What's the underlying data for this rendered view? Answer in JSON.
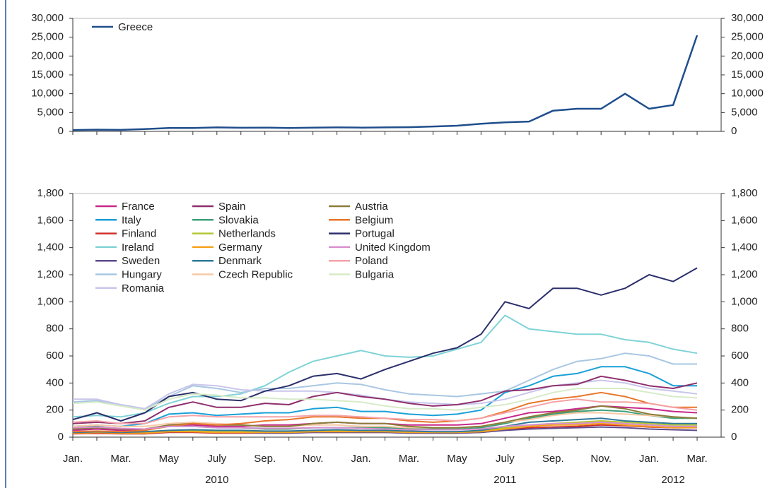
{
  "chart_data": [
    {
      "type": "line",
      "x": [
        "2010-01",
        "2010-02",
        "2010-03",
        "2010-04",
        "2010-05",
        "2010-06",
        "2010-07",
        "2010-08",
        "2010-09",
        "2010-10",
        "2010-11",
        "2010-12",
        "2011-01",
        "2011-02",
        "2011-03",
        "2011-04",
        "2011-05",
        "2011-06",
        "2011-07",
        "2011-08",
        "2011-09",
        "2011-10",
        "2011-11",
        "2011-12",
        "2012-01",
        "2012-02",
        "2012-03"
      ],
      "xlim": [
        "2010-01",
        "2012-04"
      ],
      "ylim": [
        0,
        30000
      ],
      "yticks": [
        0,
        {
          "value": 5000,
          "label": "5,000"
        },
        {
          "value": 10000,
          "label": "10,000"
        },
        {
          "value": 15000,
          "label": "15,000"
        },
        {
          "value": 20000,
          "label": "20,000"
        },
        {
          "value": 25000,
          "label": "25,000"
        },
        {
          "value": 30000,
          "label": "30,000"
        }
      ],
      "series": [
        {
          "name": "Greece",
          "color": "#1f4e8c",
          "values": [
            350,
            450,
            400,
            600,
            900,
            900,
            1050,
            950,
            1000,
            900,
            1000,
            1050,
            1000,
            1050,
            1100,
            1300,
            1500,
            2000,
            2400,
            2600,
            5500,
            6000,
            6000,
            10000,
            6000,
            7000,
            25500
          ]
        }
      ]
    },
    {
      "type": "line",
      "x": [
        "2010-01",
        "2010-02",
        "2010-03",
        "2010-04",
        "2010-05",
        "2010-06",
        "2010-07",
        "2010-08",
        "2010-09",
        "2010-10",
        "2010-11",
        "2010-12",
        "2011-01",
        "2011-02",
        "2011-03",
        "2011-04",
        "2011-05",
        "2011-06",
        "2011-07",
        "2011-08",
        "2011-09",
        "2011-10",
        "2011-11",
        "2011-12",
        "2012-01",
        "2012-02",
        "2012-03"
      ],
      "xlim": [
        "2010-01",
        "2012-04"
      ],
      "xticks": [
        {
          "value": "2010-01",
          "label": "Jan."
        },
        {
          "value": "2010-03",
          "label": "Mar."
        },
        {
          "value": "2010-05",
          "label": "May"
        },
        {
          "value": "2010-07",
          "label": "July"
        },
        {
          "value": "2010-09",
          "label": "Sep."
        },
        {
          "value": "2010-11",
          "label": "Nov."
        },
        {
          "value": "2011-01",
          "label": "Jan."
        },
        {
          "value": "2011-03",
          "label": "Mar."
        },
        {
          "value": "2011-05",
          "label": "May"
        },
        {
          "value": "2011-07",
          "label": "July"
        },
        {
          "value": "2011-09",
          "label": "Sep."
        },
        {
          "value": "2011-11",
          "label": "Nov."
        },
        {
          "value": "2012-01",
          "label": "Jan."
        },
        {
          "value": "2012-03",
          "label": "Mar."
        }
      ],
      "year_labels": [
        {
          "value": "2010-07",
          "label": "2010"
        },
        {
          "value": "2011-07",
          "label": "2011"
        },
        {
          "value": "2012-02",
          "label": "2012"
        }
      ],
      "ylim": [
        0,
        1800
      ],
      "yticks": [
        0,
        200,
        400,
        600,
        800,
        {
          "value": 1000,
          "label": "1,000"
        },
        {
          "value": 1200,
          "label": "1,200"
        },
        {
          "value": 1400,
          "label": "1,400"
        },
        {
          "value": 1600,
          "label": "1,600"
        },
        {
          "value": 1800,
          "label": "1,800"
        }
      ],
      "series": [
        {
          "name": "France",
          "color": "#c7288a",
          "values": [
            50,
            60,
            50,
            55,
            80,
            90,
            80,
            80,
            90,
            90,
            100,
            110,
            100,
            100,
            90,
            90,
            90,
            100,
            140,
            180,
            190,
            210,
            230,
            220,
            210,
            190,
            180
          ]
        },
        {
          "name": "Italy",
          "color": "#1aa0d8",
          "values": [
            80,
            90,
            80,
            100,
            170,
            180,
            160,
            170,
            180,
            180,
            210,
            220,
            190,
            190,
            170,
            160,
            170,
            200,
            330,
            380,
            450,
            470,
            520,
            520,
            470,
            380,
            380
          ]
        },
        {
          "name": "Finland",
          "color": "#d0312d",
          "values": [
            25,
            28,
            25,
            25,
            35,
            35,
            30,
            30,
            30,
            30,
            35,
            35,
            35,
            35,
            30,
            30,
            30,
            35,
            55,
            70,
            75,
            80,
            90,
            85,
            75,
            70,
            70
          ]
        },
        {
          "name": "Ireland",
          "color": "#7fd3d6",
          "values": [
            150,
            160,
            150,
            180,
            250,
            300,
            300,
            320,
            380,
            480,
            560,
            600,
            640,
            600,
            590,
            600,
            650,
            700,
            900,
            800,
            780,
            760,
            760,
            720,
            700,
            650,
            620
          ]
        },
        {
          "name": "Sweden",
          "color": "#5d4b8e",
          "values": [
            35,
            35,
            30,
            30,
            40,
            40,
            35,
            35,
            30,
            30,
            35,
            35,
            35,
            35,
            30,
            30,
            30,
            35,
            50,
            60,
            65,
            70,
            75,
            70,
            60,
            55,
            50
          ]
        },
        {
          "name": "Hungary",
          "color": "#a9c7e2",
          "values": [
            260,
            270,
            240,
            210,
            300,
            380,
            360,
            330,
            360,
            360,
            380,
            400,
            390,
            350,
            320,
            310,
            300,
            320,
            340,
            420,
            500,
            560,
            580,
            620,
            600,
            540,
            540
          ]
        },
        {
          "name": "Romania",
          "color": "#c8c6ea",
          "values": [
            280,
            280,
            240,
            210,
            320,
            390,
            380,
            350,
            340,
            340,
            340,
            330,
            310,
            280,
            260,
            250,
            240,
            250,
            280,
            330,
            380,
            400,
            420,
            400,
            360,
            340,
            320
          ]
        },
        {
          "name": "Spain",
          "color": "#8e2f6d",
          "values": [
            100,
            110,
            100,
            120,
            220,
            260,
            220,
            220,
            250,
            240,
            300,
            330,
            300,
            280,
            250,
            230,
            240,
            270,
            340,
            350,
            380,
            390,
            450,
            420,
            380,
            360,
            400
          ]
        },
        {
          "name": "Slovakia",
          "color": "#3fa07a",
          "values": [
            70,
            80,
            60,
            60,
            80,
            80,
            70,
            70,
            60,
            60,
            70,
            70,
            70,
            70,
            60,
            60,
            60,
            70,
            100,
            140,
            170,
            190,
            200,
            190,
            160,
            140,
            140
          ]
        },
        {
          "name": "Netherlands",
          "color": "#b4c732",
          "values": [
            30,
            35,
            30,
            35,
            45,
            45,
            40,
            40,
            40,
            40,
            45,
            45,
            45,
            45,
            40,
            40,
            40,
            45,
            70,
            90,
            100,
            110,
            120,
            110,
            100,
            90,
            90
          ]
        },
        {
          "name": "Germany",
          "color": "#f5a21b",
          "values": [
            30,
            35,
            30,
            30,
            40,
            40,
            35,
            35,
            35,
            35,
            40,
            40,
            40,
            40,
            35,
            35,
            35,
            40,
            60,
            80,
            90,
            90,
            100,
            90,
            80,
            70,
            70
          ]
        },
        {
          "name": "Denmark",
          "color": "#2f7a9a",
          "values": [
            35,
            40,
            35,
            40,
            50,
            55,
            50,
            50,
            45,
            45,
            50,
            55,
            50,
            50,
            45,
            40,
            40,
            50,
            80,
            110,
            120,
            130,
            140,
            120,
            110,
            100,
            100
          ]
        },
        {
          "name": "Czech Republic",
          "color": "#f8c9a4",
          "values": [
            80,
            90,
            80,
            80,
            100,
            110,
            100,
            90,
            80,
            80,
            90,
            90,
            80,
            80,
            70,
            70,
            70,
            80,
            110,
            130,
            160,
            180,
            180,
            170,
            160,
            150,
            140
          ]
        },
        {
          "name": "Austria",
          "color": "#8a7d3a",
          "values": [
            60,
            70,
            60,
            60,
            90,
            100,
            90,
            90,
            80,
            80,
            100,
            110,
            100,
            100,
            80,
            70,
            70,
            80,
            110,
            150,
            180,
            200,
            230,
            210,
            170,
            150,
            140
          ]
        },
        {
          "name": "Belgium",
          "color": "#e8762b",
          "values": [
            40,
            45,
            40,
            50,
            80,
            100,
            90,
            100,
            120,
            130,
            150,
            150,
            140,
            140,
            120,
            110,
            120,
            140,
            190,
            250,
            280,
            300,
            330,
            300,
            250,
            220,
            220
          ]
        },
        {
          "name": "Portugal",
          "color": "#2b2f6b",
          "values": [
            130,
            180,
            120,
            180,
            300,
            330,
            280,
            270,
            340,
            380,
            450,
            470,
            430,
            500,
            560,
            620,
            660,
            760,
            1000,
            950,
            1100,
            1100,
            1050,
            1100,
            1200,
            1150,
            1250
          ]
        },
        {
          "name": "United Kingdom",
          "color": "#d98fd0",
          "values": [
            70,
            75,
            65,
            60,
            80,
            80,
            70,
            70,
            65,
            65,
            70,
            70,
            65,
            60,
            55,
            55,
            55,
            60,
            80,
            90,
            100,
            100,
            110,
            100,
            90,
            80,
            80
          ]
        },
        {
          "name": "Poland",
          "color": "#f4a3a8",
          "values": [
            110,
            120,
            100,
            100,
            150,
            160,
            150,
            150,
            150,
            150,
            160,
            160,
            150,
            140,
            130,
            130,
            120,
            140,
            180,
            220,
            260,
            280,
            260,
            260,
            250,
            220,
            200
          ]
        },
        {
          "name": "Bulgaria",
          "color": "#d7ebc7",
          "values": [
            250,
            260,
            230,
            200,
            280,
            320,
            310,
            290,
            290,
            280,
            280,
            270,
            260,
            230,
            210,
            210,
            200,
            220,
            240,
            280,
            330,
            360,
            360,
            360,
            330,
            300,
            290
          ]
        }
      ]
    }
  ]
}
